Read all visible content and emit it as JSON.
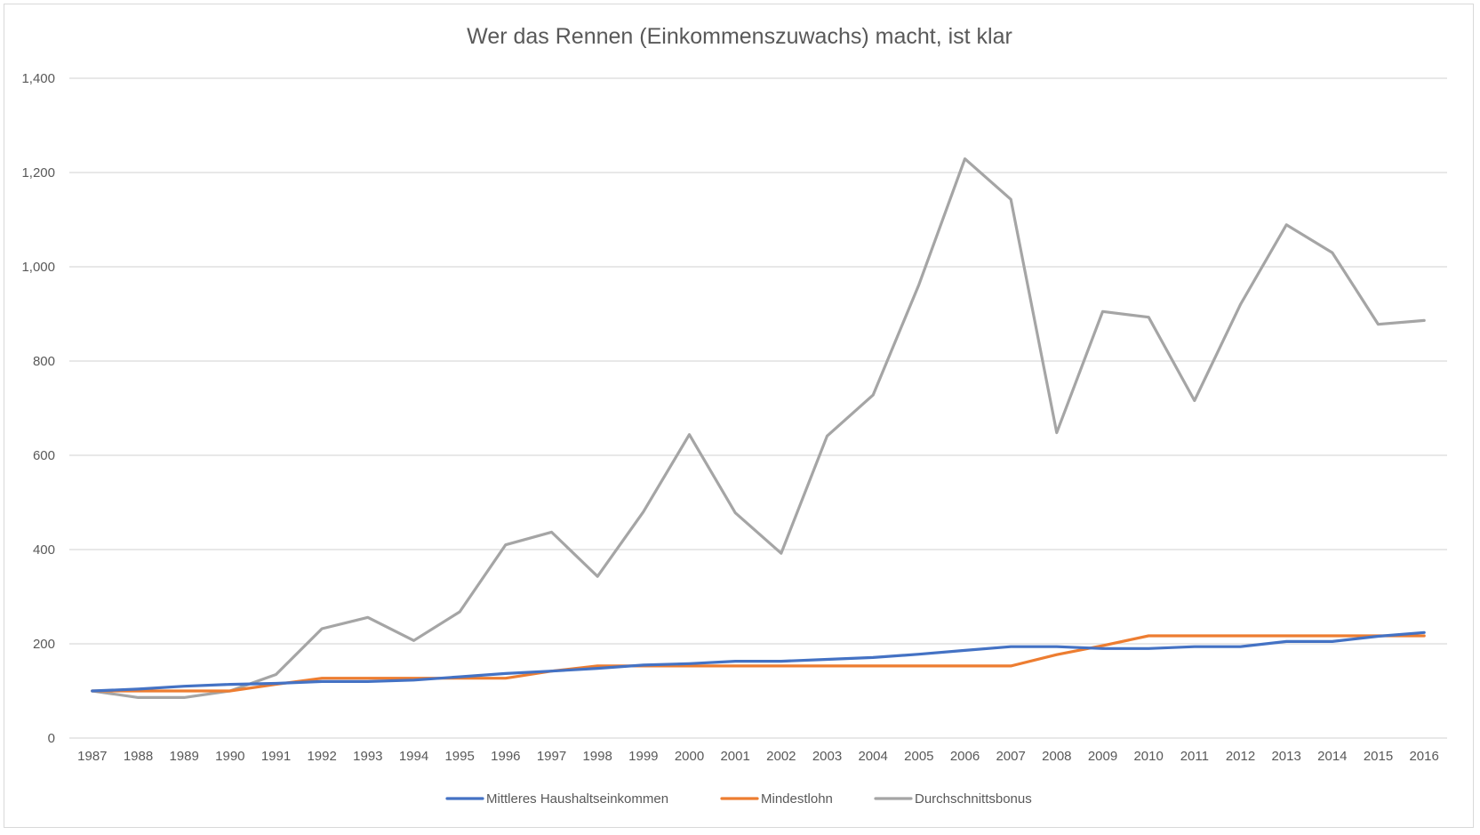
{
  "chart_data": {
    "type": "line",
    "title": "Wer das Rennen (Einkommenszuwachs) macht, ist klar",
    "xlabel": "",
    "ylabel": "",
    "ylim": [
      0,
      1400
    ],
    "yticks": [
      "0",
      "200",
      "400",
      "600",
      "800",
      "1,000",
      "1,200",
      "1,400"
    ],
    "ytick_values": [
      0,
      200,
      400,
      600,
      800,
      1000,
      1200,
      1400
    ],
    "grid": true,
    "legend": "bottom",
    "categories": [
      "1987",
      "1988",
      "1989",
      "1990",
      "1991",
      "1992",
      "1993",
      "1994",
      "1995",
      "1996",
      "1997",
      "1998",
      "1999",
      "2000",
      "2001",
      "2002",
      "2003",
      "2004",
      "2005",
      "2006",
      "2007",
      "2008",
      "2009",
      "2010",
      "2011",
      "2012",
      "2013",
      "2014",
      "2015",
      "2016"
    ],
    "series": [
      {
        "name": "Mittleres Haushaltseinkommen",
        "color": "#4472C4",
        "values": [
          100,
          104,
          110,
          114,
          116,
          120,
          120,
          123,
          130,
          137,
          142,
          148,
          155,
          158,
          163,
          163,
          167,
          171,
          178,
          186,
          194,
          194,
          190,
          190,
          194,
          194,
          205,
          205,
          216,
          224
        ]
      },
      {
        "name": "Mindestlohn",
        "color": "#ED7D31",
        "values": [
          100,
          100,
          100,
          100,
          114,
          127,
          127,
          127,
          127,
          127,
          142,
          153,
          153,
          153,
          153,
          153,
          153,
          153,
          153,
          153,
          153,
          177,
          196,
          217,
          217,
          217,
          217,
          217,
          217,
          217
        ]
      },
      {
        "name": "Durchschnittsbonus",
        "color": "#A5A5A5",
        "values": [
          100,
          86,
          86,
          100,
          135,
          232,
          256,
          207,
          268,
          410,
          437,
          343,
          480,
          644,
          478,
          392,
          641,
          728,
          962,
          1229,
          1143,
          648,
          905,
          893,
          716,
          920,
          1089,
          1030,
          878,
          886
        ]
      }
    ]
  }
}
